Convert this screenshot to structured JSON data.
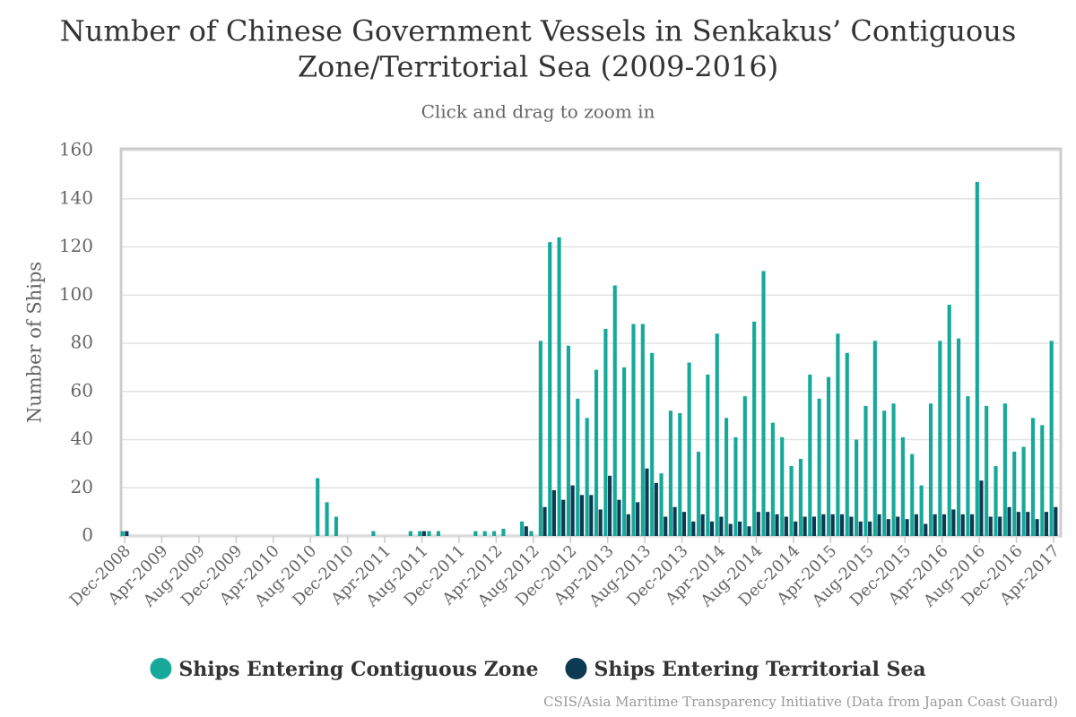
{
  "chart_data": {
    "type": "bar",
    "title": [
      "Number of Chinese Government Vessels in Senkakus’ Contiguous",
      "Zone/Territorial Sea (2009-2016)"
    ],
    "subtitle": "Click and drag to zoom in",
    "y_label": "Number of Ships",
    "credits": "CSIS/Asia Maritime Transparency Initiative (Data from Japan Coast Guard)",
    "categories": [
      "Dec-2008",
      null,
      null,
      null,
      "Apr-2009",
      null,
      null,
      null,
      "Aug-2009",
      null,
      null,
      null,
      "Dec-2009",
      null,
      null,
      null,
      "Apr-2010",
      null,
      null,
      null,
      "Aug-2010",
      null,
      null,
      null,
      "Dec-2010",
      null,
      null,
      null,
      "Apr-2011",
      null,
      null,
      null,
      "Aug-2011",
      null,
      null,
      null,
      "Dec-2011",
      null,
      null,
      null,
      "Apr-2012",
      null,
      null,
      null,
      "Aug-2012",
      null,
      null,
      null,
      "Dec-2012",
      null,
      null,
      null,
      "Apr-2013",
      null,
      null,
      null,
      "Aug-2013",
      null,
      null,
      null,
      "Dec-2013",
      null,
      null,
      null,
      "Apr-2014",
      null,
      null,
      null,
      "Aug-2014",
      null,
      null,
      null,
      "Dec-2014",
      null,
      null,
      null,
      "Apr-2015",
      null,
      null,
      null,
      "Aug-2015",
      null,
      null,
      null,
      "Dec-2015",
      null,
      null,
      null,
      "Apr-2016",
      null,
      null,
      null,
      "Aug-2016",
      null,
      null,
      null,
      "Dec-2016",
      null,
      null,
      null,
      "Apr-2017"
    ],
    "series": [
      {
        "name": "Ships Entering Contiguous Zone",
        "color": "#16a99a",
        "values": [
          2,
          0,
          0,
          0,
          0,
          0,
          0,
          0,
          0,
          0,
          0,
          0,
          0,
          0,
          0,
          0,
          0,
          0,
          0,
          0,
          0,
          24,
          14,
          8,
          0,
          0,
          0,
          2,
          0,
          0,
          0,
          2,
          2,
          2,
          2,
          0,
          0,
          0,
          2,
          2,
          2,
          3,
          0,
          6,
          2,
          81,
          122,
          124,
          79,
          57,
          49,
          69,
          86,
          104,
          70,
          88,
          88,
          76,
          26,
          52,
          51,
          72,
          35,
          67,
          84,
          49,
          41,
          58,
          89,
          110,
          47,
          41,
          29,
          32,
          67,
          57,
          66,
          84,
          76,
          40,
          54,
          81,
          52,
          55,
          41,
          34,
          21,
          55,
          81,
          96,
          82,
          58,
          147,
          54,
          29,
          55,
          35,
          37,
          49,
          46,
          81
        ]
      },
      {
        "name": "Ships Entering Territorial Sea",
        "color": "#0c3a52",
        "values": [
          2,
          0,
          0,
          0,
          0,
          0,
          0,
          0,
          0,
          0,
          0,
          0,
          0,
          0,
          0,
          0,
          0,
          0,
          0,
          0,
          0,
          0,
          0,
          0,
          0,
          0,
          0,
          0,
          0,
          0,
          0,
          0,
          2,
          0,
          0,
          0,
          0,
          0,
          0,
          0,
          0,
          0,
          0,
          4,
          0,
          12,
          19,
          15,
          21,
          17,
          17,
          11,
          25,
          15,
          9,
          14,
          28,
          22,
          8,
          12,
          10,
          6,
          9,
          6,
          8,
          5,
          6,
          4,
          10,
          10,
          9,
          8,
          6,
          8,
          8,
          9,
          9,
          9,
          8,
          6,
          6,
          9,
          7,
          8,
          7,
          9,
          5,
          9,
          9,
          11,
          9,
          9,
          23,
          8,
          8,
          12,
          10,
          10,
          7,
          10,
          12
        ]
      }
    ],
    "ylim": [
      0,
      160
    ],
    "yticks": [
      0,
      20,
      40,
      60,
      80,
      100,
      120,
      140,
      160
    ],
    "grid": true
  }
}
